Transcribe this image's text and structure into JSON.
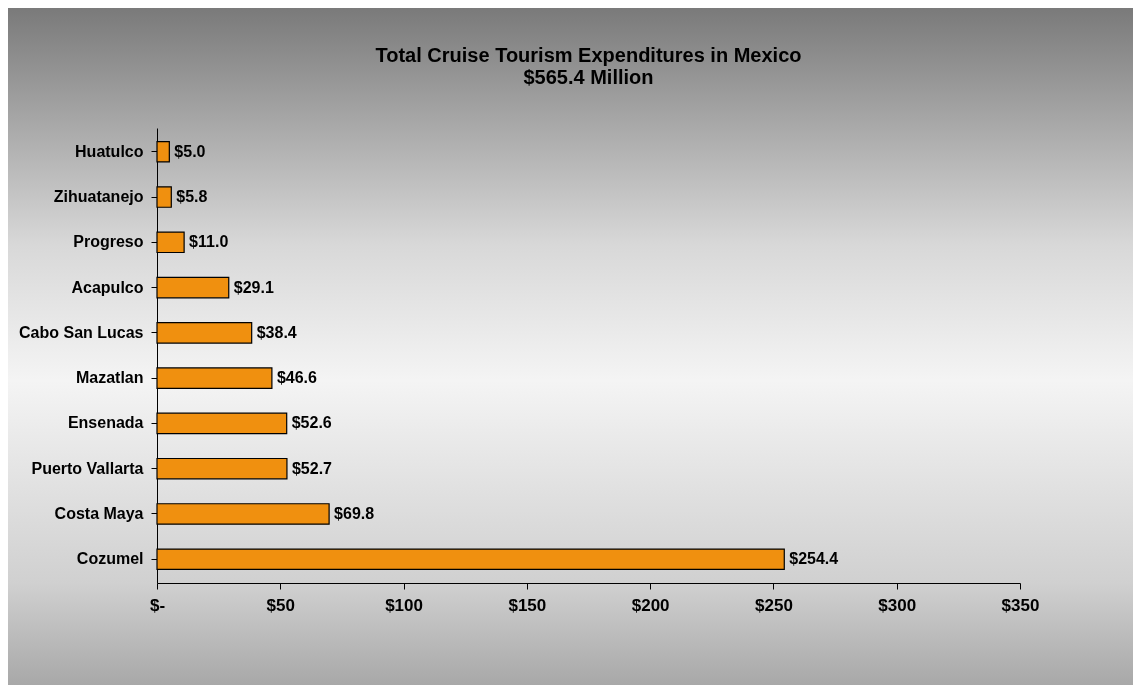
{
  "chart_data": {
    "type": "bar",
    "orientation": "horizontal",
    "title": "Total Cruise Tourism Expenditures in Mexico",
    "subtitle": "$565.4 Million",
    "categories": [
      "Huatulco",
      "Zihuatanejo",
      "Progreso",
      "Acapulco",
      "Cabo San Lucas",
      "Mazatlan",
      "Ensenada",
      "Puerto Vallarta",
      "Costa Maya",
      "Cozumel"
    ],
    "values": [
      5.0,
      5.8,
      11.0,
      29.1,
      38.4,
      46.6,
      52.6,
      52.7,
      69.8,
      254.4
    ],
    "value_labels": [
      "$5.0",
      "$5.8",
      "$11.0",
      "$29.1",
      "$38.4",
      "$46.6",
      "$52.6",
      "$52.7",
      "$69.8",
      "$254.4"
    ],
    "color": "#f0900f",
    "xlim": [
      0,
      350
    ],
    "xticks": [
      {
        "value": 0,
        "label": "$-"
      },
      {
        "value": 50,
        "label": "$50"
      },
      {
        "value": 100,
        "label": "$100"
      },
      {
        "value": 150,
        "label": "$150"
      },
      {
        "value": 200,
        "label": "$200"
      },
      {
        "value": 250,
        "label": "$250"
      },
      {
        "value": 300,
        "label": "$300"
      },
      {
        "value": 350,
        "label": "$350"
      }
    ],
    "grid": false
  }
}
